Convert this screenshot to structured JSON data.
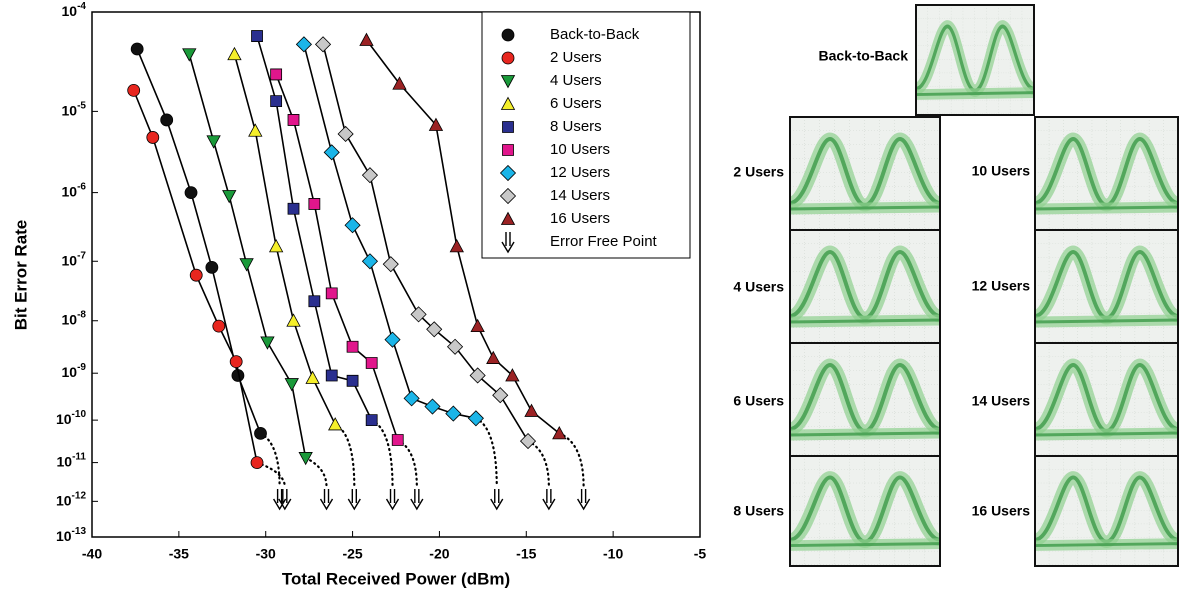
{
  "chart_data": {
    "type": "scatter-line",
    "xlabel": "Total Received Power (dBm)",
    "ylabel": "Bit  Error  Rate",
    "yscale": "ber",
    "xlim": [
      -40,
      -5
    ],
    "xticks": [
      -40,
      -35,
      -30,
      -25,
      -20,
      -15,
      -10,
      -5
    ],
    "ylim": [
      1e-13,
      0.0001
    ],
    "yticks": [
      {
        "value": 0.0001,
        "label": "10-4"
      },
      {
        "value": 1e-05,
        "label": "10-5"
      },
      {
        "value": 1e-06,
        "label": "10-6"
      },
      {
        "value": 1e-07,
        "label": "10-7"
      },
      {
        "value": 1e-08,
        "label": "10-8"
      },
      {
        "value": 1e-09,
        "label": "10-9"
      },
      {
        "value": 1e-10,
        "label": "10-10"
      },
      {
        "value": 1e-11,
        "label": "10-11"
      },
      {
        "value": 1e-12,
        "label": "10-12"
      },
      {
        "value": 1e-13,
        "label": "10-13"
      }
    ],
    "error_free_label": "Error Free Point",
    "legend": "upper right",
    "series": [
      {
        "name": "Back-to-Back",
        "color": "#111111",
        "marker": "circle",
        "x": [
          -37.4,
          -35.7,
          -34.3,
          -33.1,
          -31.6,
          -30.3
        ],
        "values": [
          4.5e-05,
          8e-06,
          1e-06,
          8e-08,
          9e-10,
          5e-11
        ],
        "error_free": -29.2
      },
      {
        "name": "2 Users",
        "color": "#e8261f",
        "marker": "circle",
        "x": [
          -37.6,
          -36.5,
          -34.0,
          -32.7,
          -31.7,
          -30.5
        ],
        "values": [
          1.7e-05,
          5e-06,
          6e-08,
          8e-09,
          1.7e-09,
          1e-11
        ],
        "error_free": -28.9
      },
      {
        "name": "4 Users",
        "color": "#1a9a3a",
        "marker": "tridown",
        "x": [
          -34.4,
          -33.0,
          -32.1,
          -31.1,
          -29.9,
          -28.5,
          -27.7
        ],
        "values": [
          4e-05,
          4.5e-06,
          9e-07,
          9e-08,
          4e-09,
          6e-10,
          1.3e-11
        ],
        "error_free": -26.5
      },
      {
        "name": "6 Users",
        "color": "#f5ef2a",
        "marker": "triup",
        "x": [
          -31.8,
          -30.6,
          -29.4,
          -28.4,
          -27.3,
          -26.0
        ],
        "values": [
          4e-05,
          6e-06,
          1.7e-07,
          1e-08,
          8e-10,
          8e-11
        ],
        "error_free": -24.9
      },
      {
        "name": "8 Users",
        "color": "#2a2f8f",
        "marker": "square",
        "x": [
          -30.5,
          -29.4,
          -28.4,
          -27.2,
          -26.2,
          -25.0,
          -23.9
        ],
        "values": [
          6e-05,
          1.3e-05,
          6e-07,
          2.2e-08,
          9e-10,
          7e-10,
          1e-10
        ],
        "error_free": -22.7
      },
      {
        "name": "10 Users",
        "color": "#e1168c",
        "marker": "square",
        "x": [
          -29.4,
          -28.4,
          -27.2,
          -26.2,
          -25.0,
          -23.9,
          -22.4
        ],
        "values": [
          2.5e-05,
          8e-06,
          7e-07,
          3e-08,
          3.3e-09,
          1.6e-09,
          3.5e-11
        ],
        "error_free": -21.3
      },
      {
        "name": "12 Users",
        "color": "#1bb5e8",
        "marker": "diamond",
        "x": [
          -27.8,
          -26.2,
          -25.0,
          -24.0,
          -22.7,
          -21.6,
          -20.4,
          -19.2,
          -17.9
        ],
        "values": [
          5e-05,
          3.3e-06,
          3.5e-07,
          1e-07,
          4.5e-09,
          3e-10,
          2e-10,
          1.4e-10,
          1.1e-10
        ],
        "error_free": -16.7
      },
      {
        "name": "14 Users",
        "color": "#c8c8c8",
        "marker": "diamond",
        "x": [
          -26.7,
          -25.4,
          -24.0,
          -22.8,
          -21.2,
          -20.3,
          -19.1,
          -17.8,
          -16.5,
          -14.9
        ],
        "values": [
          5e-05,
          5.5e-06,
          1.7e-06,
          9e-08,
          1.3e-08,
          7e-09,
          3.3e-09,
          9e-10,
          3.5e-10,
          3.3e-11
        ],
        "error_free": -13.7
      },
      {
        "name": "16 Users",
        "color": "#9b2224",
        "marker": "triup",
        "x": [
          -24.2,
          -22.3,
          -20.2,
          -19.0,
          -17.8,
          -16.9,
          -15.8,
          -14.7,
          -13.1
        ],
        "values": [
          5.5e-05,
          2e-05,
          7e-06,
          1.7e-07,
          8e-09,
          2e-09,
          9e-10,
          1.6e-10,
          5e-11
        ],
        "error_free": -11.7
      }
    ]
  },
  "eye_panels": {
    "labels": [
      "Back-to-Back",
      "2 Users",
      "4 Users",
      "6 Users",
      "8 Users",
      "10 Users",
      "12 Users",
      "14 Users",
      "16 Users"
    ]
  }
}
